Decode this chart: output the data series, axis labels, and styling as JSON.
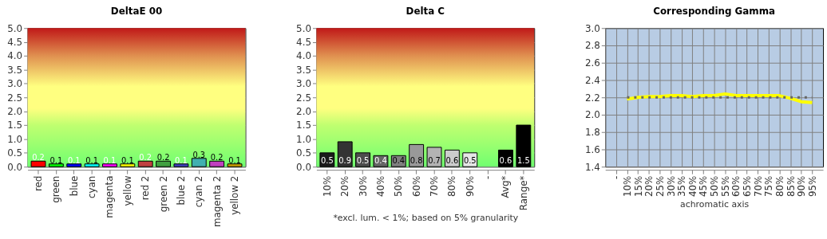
{
  "chart_data": [
    {
      "type": "bar",
      "title": "DeltaE 00",
      "categories": [
        "red",
        "green",
        "blue",
        "cyan",
        "magenta",
        "yellow",
        "red 2",
        "green 2",
        "blue 2",
        "cyan 2",
        "magenta 2",
        "yellow 2"
      ],
      "values": [
        0.2,
        0.1,
        0.1,
        0.1,
        0.1,
        0.1,
        0.2,
        0.2,
        0.1,
        0.3,
        0.2,
        0.1
      ],
      "colors": [
        "#ff0000",
        "#00ff00",
        "#0000ff",
        "#00ffff",
        "#ff00ff",
        "#ffff00",
        "#c04040",
        "#40a040",
        "#4040c0",
        "#40b0b0",
        "#c040c0",
        "#d0a000"
      ],
      "ylim": [
        0,
        5
      ],
      "yticks": [
        {
          "value": 0,
          "label": "0.0"
        },
        0.5,
        {
          "value": 1,
          "label": "1.0"
        },
        1.5,
        {
          "value": 2,
          "label": "2.0"
        },
        2.5,
        {
          "value": 3,
          "label": "3.0"
        },
        3.5,
        {
          "value": 4,
          "label": "4.0"
        },
        4.5,
        {
          "value": 5,
          "label": "5.0"
        }
      ],
      "grid": "y",
      "data_labels": true
    },
    {
      "type": "bar",
      "title": "Delta C",
      "xlabel": "*excl. lum. < 1%; based on 5% granularity",
      "categories": [
        "10%",
        "20%",
        "30%",
        "40%",
        "50%",
        "60%",
        "70%",
        "80%",
        "90%",
        "-",
        "Avg*",
        "Range*"
      ],
      "values": [
        0.5,
        0.9,
        0.5,
        0.4,
        0.4,
        0.8,
        0.7,
        0.6,
        0.5,
        null,
        0.6,
        1.5
      ],
      "colors": [
        "#1a1a1a",
        "#333333",
        "#4d4d4d",
        "#666666",
        "#808080",
        "#999999",
        "#b3b3b3",
        "#cccccc",
        "#e6e6e6",
        "#000000",
        "#000000",
        "#000000"
      ],
      "ylim": [
        0,
        5
      ],
      "yticks": [
        {
          "value": 0,
          "label": "0.0"
        },
        0.5,
        {
          "value": 1,
          "label": "1.0"
        },
        1.5,
        {
          "value": 2,
          "label": "2.0"
        },
        2.5,
        {
          "value": 3,
          "label": "3.0"
        },
        3.5,
        {
          "value": 4,
          "label": "4.0"
        },
        4.5,
        {
          "value": 5,
          "label": "5.0"
        }
      ],
      "grid": "y",
      "data_labels": true
    },
    {
      "type": "line",
      "title": "Corresponding Gamma",
      "xlabel": "achromatic axis",
      "categories": [
        "-",
        "10%",
        "15%",
        "20%",
        "25%",
        "30%",
        "35%",
        "40%",
        "45%",
        "50%",
        "55%",
        "60%",
        "65%",
        "70%",
        "75%",
        "80%",
        "85%",
        "90%",
        "95%"
      ],
      "series": [
        {
          "color": "#ffff00",
          "line_style": "solid",
          "values": [
            null,
            2.18,
            2.2,
            2.21,
            2.21,
            2.22,
            2.22,
            2.21,
            2.22,
            2.22,
            2.24,
            2.22,
            2.22,
            2.22,
            2.22,
            2.22,
            2.19,
            2.15,
            2.14
          ]
        },
        {
          "color": "#666666",
          "line_style": "dotted",
          "values": [
            null,
            2.2,
            2.2,
            2.2,
            2.2,
            2.2,
            2.2,
            2.2,
            2.2,
            2.2,
            2.2,
            2.2,
            2.2,
            2.2,
            2.2,
            2.2,
            2.2,
            2.2,
            2.2
          ]
        }
      ],
      "ylim": [
        1.4,
        3.0
      ],
      "yticks": [
        1.4,
        1.6,
        1.8,
        {
          "value": 2,
          "label": "2.0"
        },
        2.2,
        2.4,
        2.6,
        2.8,
        {
          "value": 3,
          "label": "3.0"
        }
      ],
      "grid": true
    }
  ]
}
